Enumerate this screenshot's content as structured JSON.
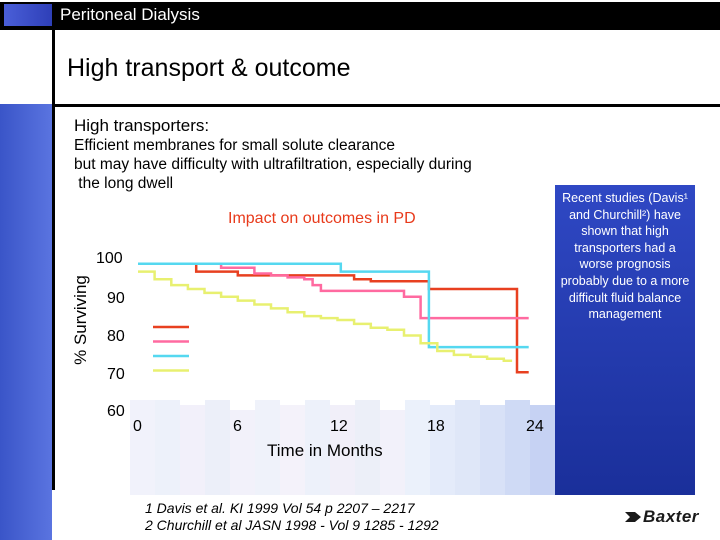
{
  "header": {
    "title": "Peritoneal Dialysis"
  },
  "slide": {
    "heading": "High transport & outcome",
    "subheading": "High transporters:",
    "description": "Efficient membranes for small solute clearance\nbut may have difficulty with ultrafiltration, especially during\n the long dwell",
    "note": "Recent studies (Davis¹ and Churchill²) have shown that high transporters had a worse prognosis probably due to a more difficult fluid balance management",
    "references": "1 Davis et al. KI 1999 Vol 54 p 2207 – 2217\n2 Churchill et al JASN 1998 - Vol 9 1285 - 1292",
    "logo": "Baxter"
  },
  "colors": {
    "accent_blue": "#3a55c8",
    "impact_title": "#e83a1b",
    "series": [
      "#e84020",
      "#ff6aa0",
      "#55d8f0",
      "#e8f070"
    ]
  },
  "chart_data": {
    "type": "line",
    "title": "Impact on outcomes in PD",
    "xlabel": "Time in Months",
    "ylabel": "% Surviving",
    "xlim": [
      0,
      24
    ],
    "ylim": [
      60,
      100
    ],
    "xticks": [
      "0",
      "6",
      "12",
      "18",
      "24"
    ],
    "yticks": [
      "100",
      "90",
      "80",
      "70",
      "60"
    ],
    "grid": false,
    "legend": "left, unlabeled color swatches",
    "series": [
      {
        "color": "#e84020",
        "x": [
          0,
          3.2,
          3.5,
          6,
          9,
          13,
          14,
          17.5,
          22.5,
          22.8,
          23.5
        ],
        "y": [
          98.5,
          98.5,
          96.5,
          95.5,
          95.5,
          94.5,
          94.0,
          92.0,
          92.0,
          70.5,
          70.5
        ]
      },
      {
        "color": "#ff6aa0",
        "x": [
          0,
          3.3,
          5,
          6,
          7,
          8,
          9,
          10,
          10.5,
          11,
          14,
          16,
          17,
          23.5
        ],
        "y": [
          98.5,
          98.5,
          97.5,
          97.5,
          96.0,
          95.5,
          95.0,
          94.5,
          93.0,
          91.5,
          91.5,
          90.0,
          84.5,
          84.5
        ]
      },
      {
        "color": "#55d8f0",
        "x": [
          0,
          12,
          12.2,
          17.2,
          17.5,
          23.5
        ],
        "y": [
          98.5,
          98.5,
          96.5,
          96.5,
          77.0,
          77.0
        ]
      },
      {
        "color": "#e8f070",
        "x": [
          0,
          1,
          2,
          3,
          4,
          5,
          6,
          7,
          8,
          9,
          10,
          11,
          12,
          13,
          14,
          15,
          16,
          17,
          18,
          19,
          20,
          21,
          22,
          22.5
        ],
        "y": [
          96.5,
          94.5,
          93.0,
          92.0,
          91.0,
          90.0,
          89.0,
          88.0,
          87.0,
          86.0,
          85.0,
          84.5,
          84.0,
          83.0,
          82.0,
          81.5,
          80.0,
          78.0,
          76.0,
          75.0,
          74.5,
          74.0,
          73.5,
          73.5
        ]
      }
    ]
  }
}
